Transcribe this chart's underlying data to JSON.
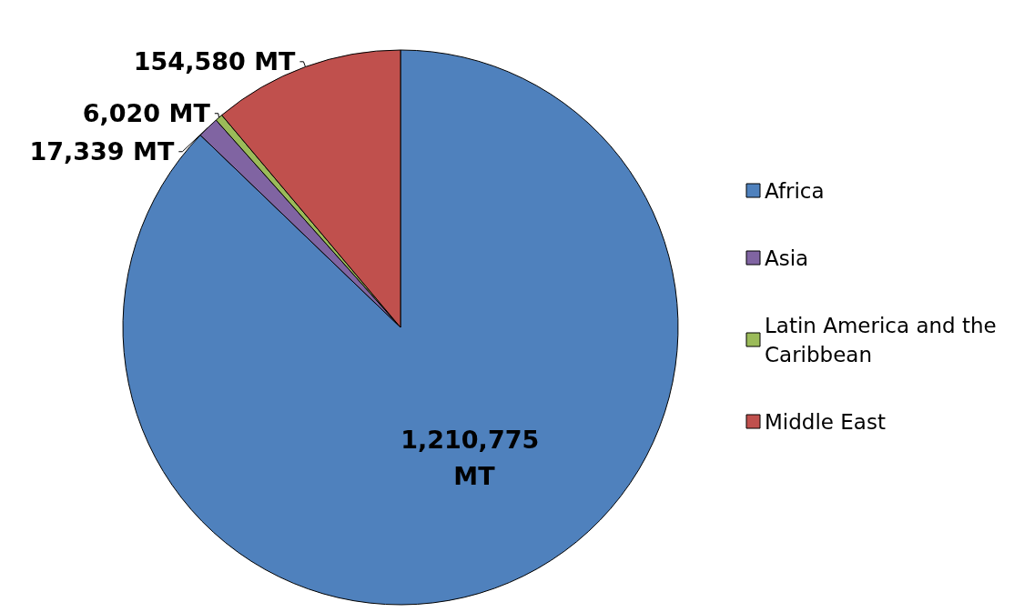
{
  "chart_data": {
    "type": "pie",
    "categories": [
      "Africa",
      "Asia",
      "Latin America and the Caribbean",
      "Middle East"
    ],
    "values": [
      1210775,
      17339,
      6020,
      154580
    ],
    "colors": [
      "#4f81bd",
      "#8064a2",
      "#9bbb59",
      "#c0504d"
    ],
    "value_labels": [
      "1,210,775 MT",
      "17,339 MT",
      "6,020 MT",
      "154,580 MT"
    ],
    "legend": "right"
  }
}
